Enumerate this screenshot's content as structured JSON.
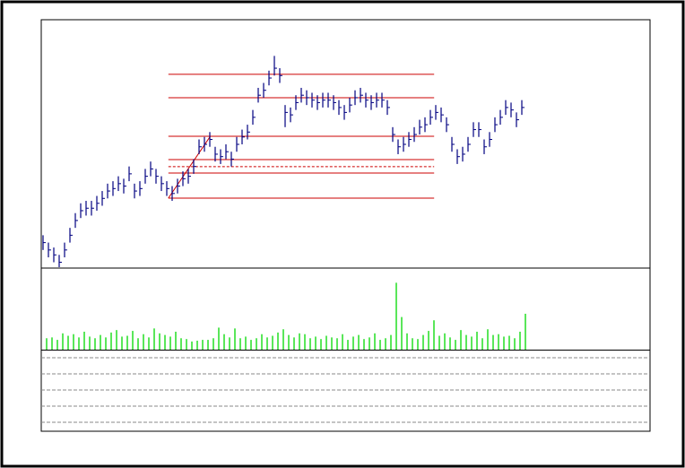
{
  "chart_data": [
    {
      "type": "ohlc",
      "color": "#000080",
      "ylim": [
        0,
        100
      ],
      "high": [
        13,
        10,
        8,
        5,
        10,
        16,
        22,
        26,
        27,
        27,
        29,
        31,
        34,
        35,
        37,
        36,
        41,
        34,
        35,
        40,
        43,
        40,
        37,
        35,
        33,
        36,
        39,
        40,
        44,
        52,
        53,
        55,
        49,
        48,
        50,
        47,
        53,
        56,
        58,
        64,
        73,
        75,
        80,
        86,
        81,
        66,
        65,
        70,
        73,
        72,
        71,
        70,
        71,
        71,
        70,
        68,
        66,
        69,
        72,
        73,
        71,
        70,
        71,
        71,
        68,
        57,
        52,
        53,
        55,
        57,
        60,
        61,
        64,
        66,
        65,
        61,
        53,
        48,
        49,
        53,
        59,
        59,
        52,
        55,
        61,
        64,
        68,
        67,
        63,
        68
      ],
      "low": [
        7,
        4,
        2,
        0,
        4,
        10,
        16,
        20,
        21,
        21,
        23,
        25,
        28,
        29,
        31,
        30,
        35,
        28,
        29,
        34,
        37,
        34,
        31,
        29,
        27,
        30,
        33,
        34,
        38,
        46,
        47,
        49,
        43,
        42,
        44,
        41,
        47,
        50,
        52,
        58,
        67,
        69,
        74,
        78,
        75,
        57,
        59,
        64,
        67,
        66,
        65,
        64,
        65,
        65,
        64,
        62,
        60,
        63,
        66,
        67,
        65,
        64,
        65,
        65,
        62,
        51,
        46,
        47,
        49,
        51,
        54,
        55,
        58,
        60,
        59,
        55,
        47,
        42,
        43,
        47,
        53,
        53,
        46,
        49,
        55,
        58,
        62,
        61,
        57,
        62
      ],
      "close": [
        10,
        7,
        5,
        2,
        7,
        13,
        19,
        23,
        24,
        24,
        26,
        28,
        31,
        32,
        34,
        33,
        38,
        31,
        32,
        37,
        40,
        37,
        34,
        32,
        30,
        33,
        36,
        37,
        41,
        49,
        50,
        52,
        46,
        45,
        47,
        44,
        50,
        53,
        55,
        61,
        70,
        72,
        77,
        81,
        78,
        63,
        62,
        67,
        70,
        69,
        68,
        67,
        68,
        68,
        67,
        65,
        63,
        66,
        69,
        70,
        68,
        67,
        68,
        68,
        65,
        54,
        49,
        50,
        52,
        54,
        57,
        58,
        61,
        63,
        62,
        58,
        50,
        45,
        46,
        50,
        56,
        56,
        49,
        52,
        58,
        61,
        65,
        64,
        60,
        65
      ],
      "levels": [
        78.5,
        69.0,
        53.3,
        43.8,
        38.3,
        28.1
      ],
      "level_color": "#cc0000",
      "dashed_level": 40.9
    },
    {
      "type": "bar",
      "color": "#22dd22",
      "ylim": [
        0,
        100
      ],
      "values": [
        14,
        15,
        12,
        20,
        17,
        19,
        15,
        22,
        16,
        14,
        18,
        15,
        21,
        24,
        16,
        17,
        23,
        14,
        19,
        15,
        26,
        20,
        18,
        16,
        22,
        14,
        13,
        10,
        11,
        12,
        12,
        14,
        27,
        19,
        15,
        26,
        14,
        16,
        12,
        14,
        19,
        15,
        17,
        21,
        25,
        18,
        15,
        20,
        19,
        14,
        16,
        13,
        17,
        15,
        14,
        19,
        12,
        16,
        18,
        13,
        15,
        20,
        12,
        14,
        18,
        82,
        40,
        20,
        14,
        13,
        18,
        23,
        36,
        17,
        20,
        15,
        12,
        24,
        18,
        16,
        22,
        14,
        25,
        18,
        19,
        16,
        17,
        14,
        22,
        44
      ]
    }
  ]
}
